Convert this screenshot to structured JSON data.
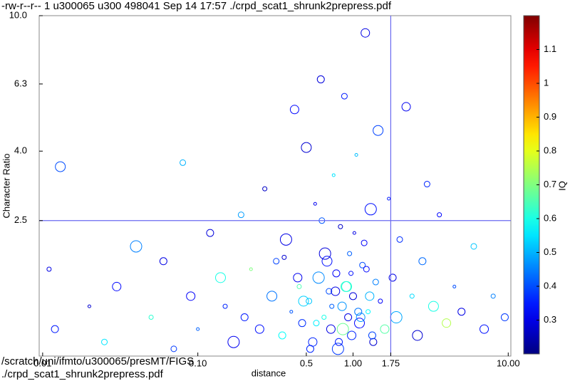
{
  "chart_data": {
    "type": "scatter",
    "header_text": "-rw-r--r-- 1 u300065 u300 498041 Sep 14 17:57 ./crpd_scat1_shrunk2prepress.pdf",
    "footer_lines": [
      "/scratch/uni/ifmto/u300065/presMT/FIGS",
      "./crpd_scat1_shrunk2prepress.pdf"
    ],
    "xlabel": "distance",
    "ylabel": "Character Ratio",
    "colorbar_label": "IQ",
    "xscale": "log",
    "yscale": "log",
    "xlim": [
      0.0095,
      10.4
    ],
    "ylim": [
      1,
      10
    ],
    "xticks": [
      0.01,
      {
        "value": 0.1,
        "label": "0.10"
      },
      0.5,
      {
        "value": 1,
        "label": "1.00"
      },
      1.75,
      {
        "value": 10,
        "label": "10.00"
      }
    ],
    "yticks": [
      2.5,
      {
        "value": 4,
        "label": "4.0"
      },
      6.3,
      {
        "value": 10,
        "label": "10.0"
      }
    ],
    "hlines": [
      2.5
    ],
    "vlines": [
      1.75
    ],
    "line_color": "#6a6af0",
    "clim": [
      0.2,
      1.2
    ],
    "cticks": [
      0.3,
      0.4,
      0.5,
      0.6,
      0.7,
      0.8,
      0.9,
      1,
      1.1
    ],
    "colormap": "jet",
    "x": [
      0.011,
      0.012,
      0.013,
      0.02,
      0.025,
      0.03,
      0.04,
      0.05,
      0.06,
      0.07,
      0.08,
      0.09,
      0.1,
      0.12,
      0.14,
      0.15,
      0.17,
      0.19,
      0.2,
      0.22,
      0.25,
      0.27,
      0.3,
      0.32,
      0.35,
      0.37,
      0.4,
      0.42,
      0.45,
      0.47,
      0.5,
      0.52,
      0.55,
      0.57,
      0.6,
      0.62,
      0.65,
      0.68,
      0.7,
      0.72,
      0.75,
      0.78,
      0.8,
      0.83,
      0.85,
      0.88,
      0.9,
      0.93,
      0.95,
      0.98,
      1.0,
      1.05,
      1.1,
      1.15,
      1.2,
      1.25,
      1.3,
      1.35,
      1.4,
      1.45,
      1.5,
      1.6,
      1.7,
      1.8,
      1.9,
      2.0,
      2.2,
      2.4,
      2.6,
      2.8,
      3.0,
      3.3,
      3.6,
      4.0,
      4.5,
      5.0,
      6.0,
      7.0,
      8.0,
      9.5,
      0.44,
      0.58,
      0.66,
      0.73,
      0.81,
      0.91,
      1.02,
      1.12,
      1.22,
      1.33,
      0.36,
      0.48,
      0.53,
      0.63,
      0.77,
      0.86,
      0.97,
      1.08,
      1.18,
      1.28
    ],
    "y": [
      1.8,
      1.2,
      3.6,
      1.4,
      1.1,
      1.6,
      2.1,
      1.3,
      1.9,
      1.05,
      3.7,
      1.5,
      1.2,
      2.3,
      1.7,
      1.4,
      1.1,
      2.6,
      1.3,
      1.8,
      1.2,
      3.1,
      1.5,
      1.9,
      1.15,
      2.2,
      1.35,
      5.3,
      1.6,
      1.25,
      4.1,
      1.45,
      1.1,
      2.8,
      1.7,
      6.5,
      1.3,
      1.9,
      1.55,
      1.2,
      3.4,
      1.75,
      1.05,
      2.4,
      1.4,
      5.8,
      1.6,
      1.3,
      2.0,
      1.15,
      1.5,
      3.9,
      1.25,
      1.85,
      8.9,
      1.35,
      2.7,
      1.1,
      1.65,
      4.6,
      1.45,
      1.2,
      2.9,
      1.7,
      1.3,
      2.2,
      5.4,
      1.5,
      1.15,
      1.9,
      3.2,
      1.4,
      2.6,
      1.25,
      1.6,
      1.35,
      2.1,
      1.2,
      1.5,
      1.3,
      1.7,
      1.25,
      2.0,
      1.4,
      1.1,
      1.6,
      2.3,
      1.3,
      1.8,
      1.15,
      1.95,
      1.45,
      1.05,
      2.5,
      1.55,
      1.2,
      1.75,
      1.35,
      2.15,
      1.5
    ],
    "sizes": [
      3,
      5,
      7,
      2,
      4,
      6,
      8,
      3,
      5,
      4,
      4,
      6,
      2,
      5,
      7,
      3,
      8,
      4,
      5,
      2,
      6,
      3,
      7,
      4,
      5,
      8,
      2,
      6,
      3,
      5,
      7,
      4,
      6,
      2,
      8,
      5,
      3,
      7,
      4,
      6,
      2,
      5,
      8,
      3,
      6,
      4,
      7,
      5,
      3,
      6,
      5,
      2,
      7,
      4,
      6,
      3,
      8,
      5,
      4,
      7,
      3,
      6,
      2,
      5,
      8,
      4,
      6,
      3,
      7,
      5,
      4,
      7,
      3,
      6,
      2,
      5,
      4,
      6,
      3,
      5,
      6,
      4,
      8,
      3,
      5,
      7,
      2,
      6,
      4,
      5,
      3,
      7,
      5,
      4,
      6,
      8,
      3,
      5,
      4,
      6
    ],
    "c": [
      0.3,
      0.35,
      0.4,
      0.28,
      0.55,
      0.33,
      0.45,
      0.62,
      0.3,
      0.38,
      0.5,
      0.32,
      0.42,
      0.29,
      0.6,
      0.36,
      0.31,
      0.48,
      0.35,
      0.7,
      0.34,
      0.27,
      0.44,
      0.39,
      0.58,
      0.3,
      0.41,
      0.33,
      0.65,
      0.37,
      0.28,
      0.52,
      0.36,
      0.31,
      0.46,
      0.29,
      0.6,
      0.34,
      0.4,
      0.3,
      0.55,
      0.32,
      0.38,
      0.27,
      0.47,
      0.35,
      0.63,
      0.3,
      0.42,
      0.36,
      0.29,
      0.51,
      0.33,
      0.4,
      0.3,
      0.57,
      0.34,
      0.28,
      0.45,
      0.39,
      0.32,
      0.66,
      0.35,
      0.3,
      0.49,
      0.37,
      0.31,
      0.54,
      0.28,
      0.43,
      0.36,
      0.6,
      0.33,
      0.75,
      0.4,
      0.3,
      0.52,
      0.34,
      0.45,
      0.38,
      0.31,
      0.56,
      0.29,
      0.42,
      0.35,
      0.61,
      0.3,
      0.47,
      0.33,
      0.39,
      0.28,
      0.53,
      0.36,
      0.41,
      0.3,
      0.68,
      0.34,
      0.44,
      0.32,
      0.5
    ]
  }
}
